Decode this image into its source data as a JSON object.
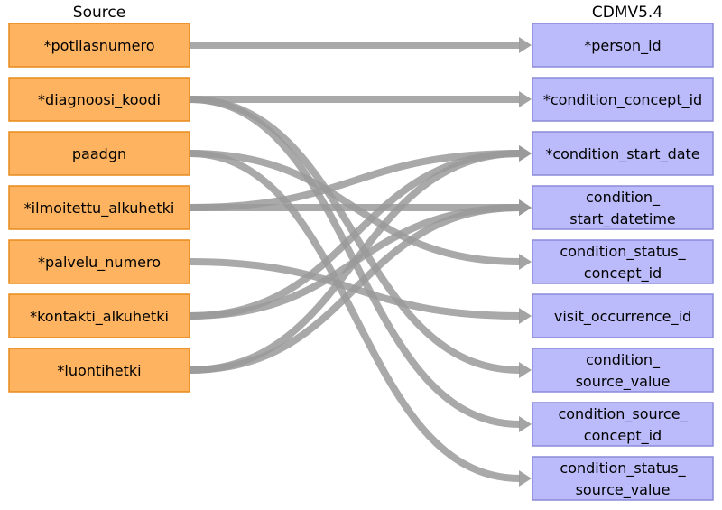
{
  "headers": {
    "source": "Source",
    "target": "CDMV5.4"
  },
  "colors": {
    "source_fill": "#fdb360",
    "source_stroke": "#e88a1a",
    "target_fill": "#bbbbfb",
    "target_stroke": "#8a8ad9",
    "arrow": "#9a9a9a"
  },
  "source_fields": [
    [
      "*potilasnumero"
    ],
    [
      "*diagnoosi_koodi"
    ],
    [
      "paadgn"
    ],
    [
      "*ilmoitettu_alkuhetki"
    ],
    [
      "*palvelu_numero"
    ],
    [
      "*kontakti_alkuhetki"
    ],
    [
      "*luontihetki"
    ]
  ],
  "target_fields": [
    [
      "*person_id"
    ],
    [
      "*condition_concept_id"
    ],
    [
      "*condition_start_date"
    ],
    [
      "condition_",
      "start_datetime"
    ],
    [
      "condition_status_",
      "concept_id"
    ],
    [
      "visit_occurrence_id"
    ],
    [
      "condition_",
      "source_value"
    ],
    [
      "condition_source_",
      "concept_id"
    ],
    [
      "condition_status_",
      "source_value"
    ]
  ],
  "mappings": [
    {
      "from": 0,
      "to": 0
    },
    {
      "from": 1,
      "to": 1
    },
    {
      "from": 1,
      "to": 6
    },
    {
      "from": 1,
      "to": 7
    },
    {
      "from": 2,
      "to": 4
    },
    {
      "from": 2,
      "to": 8
    },
    {
      "from": 3,
      "to": 2
    },
    {
      "from": 3,
      "to": 3
    },
    {
      "from": 4,
      "to": 5
    },
    {
      "from": 5,
      "to": 2
    },
    {
      "from": 5,
      "to": 3
    },
    {
      "from": 6,
      "to": 2
    },
    {
      "from": 6,
      "to": 3
    }
  ]
}
